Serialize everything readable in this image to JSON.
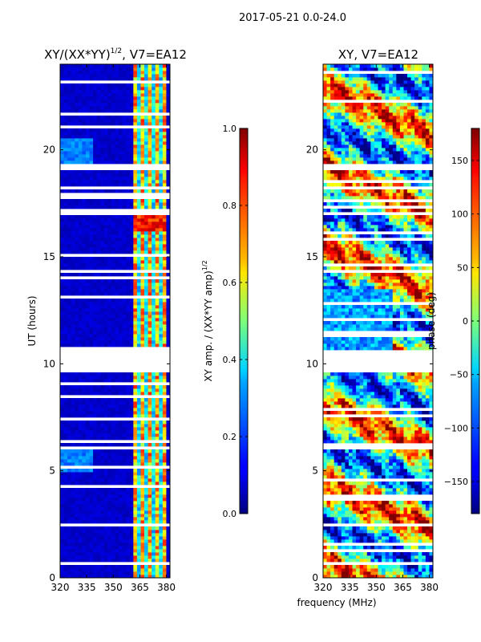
{
  "figure": {
    "suptitle": "2017-05-21 0.0-24.0",
    "shared_xlabel": "frequency (MHz)"
  },
  "chart_data": [
    {
      "type": "heatmap",
      "title": "XY/(XX*YY)",
      "title_superscript": "1/2",
      "title_suffix": ", V7=EA12",
      "xlabel": "",
      "ylabel": "UT (hours)",
      "xlim": [
        320,
        382
      ],
      "ylim": [
        0,
        24
      ],
      "xticks": [
        320,
        335,
        350,
        365,
        380
      ],
      "yticks": [
        0,
        5,
        10,
        15,
        20
      ],
      "colormap": "jet",
      "clim": [
        0.0,
        1.0
      ],
      "colorbar": {
        "label": "XY amp. / (XX*YY amp)",
        "label_superscript": "1/2",
        "ticks": [
          0.0,
          0.2,
          0.4,
          0.6,
          0.8,
          1.0
        ],
        "tick_labels": [
          "0.0",
          "0.2",
          "0.4",
          "0.6",
          "0.8",
          "1.0"
        ]
      },
      "gaps_hours": [
        [
          9.6,
          10.7
        ],
        [
          18.1,
          18.3
        ],
        [
          19.1,
          19.4
        ],
        [
          20.8,
          20.9
        ],
        [
          2.4,
          2.6
        ],
        [
          6.0,
          6.2
        ],
        [
          16.9,
          17.1
        ]
      ],
      "features": {
        "background_level": 0.05,
        "rfi_band_mhz": [
          362,
          380
        ],
        "rfi_band_level": 0.55,
        "hot_block_hours": [
          16.2,
          17.0
        ],
        "hot_block_mhz": [
          362,
          380
        ],
        "hot_block_level": 0.95
      }
    },
    {
      "type": "heatmap",
      "title": "XY, V7=EA12",
      "xlabel": "",
      "ylabel": "",
      "xlim": [
        320,
        382
      ],
      "ylim": [
        0,
        24
      ],
      "xticks": [
        320,
        335,
        350,
        365,
        380
      ],
      "yticks": [
        0,
        5,
        10,
        15,
        20
      ],
      "colormap": "jet",
      "clim": [
        -180,
        180
      ],
      "colorbar": {
        "label": "phase (deg)",
        "ticks": [
          -150,
          -100,
          -50,
          0,
          50,
          100,
          150
        ],
        "tick_labels": [
          "−150",
          "−100",
          "−50",
          "0",
          "50",
          "100",
          "150"
        ]
      },
      "gaps_hours": [
        [
          9.6,
          10.7
        ],
        [
          18.1,
          18.3
        ],
        [
          19.1,
          19.4
        ],
        [
          20.8,
          20.9
        ],
        [
          2.4,
          2.6
        ],
        [
          6.0,
          6.2
        ],
        [
          16.9,
          17.1
        ]
      ]
    }
  ]
}
